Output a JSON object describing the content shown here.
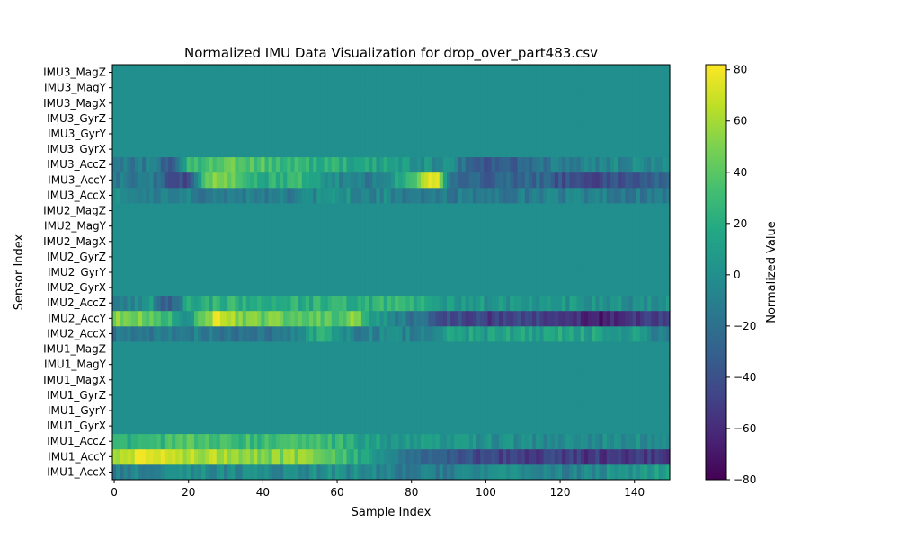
{
  "chart_data": {
    "type": "heatmap",
    "title": "Normalized IMU Data Visualization for drop_over_part483.csv",
    "xlabel": "Sample Index",
    "ylabel": "Sensor Index",
    "xlim": [
      0,
      150
    ],
    "x_ticks": [
      0,
      20,
      40,
      60,
      80,
      100,
      120,
      140
    ],
    "rows": [
      "IMU1_AccX",
      "IMU1_AccY",
      "IMU1_AccZ",
      "IMU1_GyrX",
      "IMU1_GyrY",
      "IMU1_GyrZ",
      "IMU1_MagX",
      "IMU1_MagY",
      "IMU1_MagZ",
      "IMU2_AccX",
      "IMU2_AccY",
      "IMU2_AccZ",
      "IMU2_GyrX",
      "IMU2_GyrY",
      "IMU2_GyrZ",
      "IMU2_MagX",
      "IMU2_MagY",
      "IMU2_MagZ",
      "IMU3_AccX",
      "IMU3_AccY",
      "IMU3_AccZ",
      "IMU3_GyrX",
      "IMU3_GyrY",
      "IMU3_GyrZ",
      "IMU3_MagX",
      "IMU3_MagY",
      "IMU3_MagZ"
    ],
    "n_samples": 150,
    "colorbar": {
      "label": "Normalized Value",
      "range": [
        -80,
        82
      ],
      "ticks": [
        -80,
        -60,
        -40,
        -20,
        0,
        20,
        40,
        60,
        80
      ],
      "colormap": "viridis"
    },
    "row_profiles": {
      "IMU1_AccX": [
        [
          0,
          -10
        ],
        [
          20,
          0
        ],
        [
          40,
          -5
        ],
        [
          60,
          0
        ],
        [
          80,
          -15
        ],
        [
          100,
          -5
        ],
        [
          120,
          -10
        ],
        [
          140,
          5
        ],
        [
          149,
          15
        ]
      ],
      "IMU1_AccY": [
        [
          0,
          65
        ],
        [
          10,
          75
        ],
        [
          20,
          65
        ],
        [
          30,
          65
        ],
        [
          40,
          50
        ],
        [
          55,
          55
        ],
        [
          60,
          40
        ],
        [
          70,
          5
        ],
        [
          80,
          -20
        ],
        [
          90,
          -30
        ],
        [
          100,
          -45
        ],
        [
          110,
          -50
        ],
        [
          120,
          -50
        ],
        [
          130,
          -55
        ],
        [
          140,
          -55
        ],
        [
          149,
          -50
        ]
      ],
      "IMU1_AccZ": [
        [
          0,
          20
        ],
        [
          20,
          35
        ],
        [
          35,
          30
        ],
        [
          50,
          30
        ],
        [
          60,
          25
        ],
        [
          70,
          10
        ],
        [
          80,
          5
        ],
        [
          100,
          0
        ],
        [
          120,
          -5
        ],
        [
          140,
          0
        ],
        [
          149,
          0
        ]
      ],
      "IMU2_AccX": [
        [
          0,
          -20
        ],
        [
          15,
          -10
        ],
        [
          30,
          -15
        ],
        [
          45,
          -20
        ],
        [
          55,
          20
        ],
        [
          65,
          -10
        ],
        [
          75,
          -5
        ],
        [
          85,
          -10
        ],
        [
          90,
          15
        ],
        [
          100,
          10
        ],
        [
          120,
          15
        ],
        [
          140,
          10
        ],
        [
          149,
          -15
        ]
      ],
      "IMU2_AccY": [
        [
          0,
          55
        ],
        [
          10,
          45
        ],
        [
          15,
          25
        ],
        [
          20,
          5
        ],
        [
          28,
          75
        ],
        [
          35,
          45
        ],
        [
          50,
          45
        ],
        [
          60,
          40
        ],
        [
          65,
          55
        ],
        [
          70,
          5
        ],
        [
          80,
          -15
        ],
        [
          90,
          -40
        ],
        [
          100,
          -50
        ],
        [
          110,
          -45
        ],
        [
          120,
          -50
        ],
        [
          130,
          -65
        ],
        [
          140,
          -55
        ],
        [
          149,
          -45
        ]
      ],
      "IMU2_AccZ": [
        [
          0,
          -20
        ],
        [
          10,
          5
        ],
        [
          15,
          -40
        ],
        [
          20,
          20
        ],
        [
          40,
          25
        ],
        [
          60,
          20
        ],
        [
          80,
          25
        ],
        [
          90,
          10
        ],
        [
          100,
          5
        ],
        [
          120,
          5
        ],
        [
          140,
          0
        ],
        [
          149,
          0
        ]
      ],
      "IMU3_AccX": [
        [
          0,
          -5
        ],
        [
          20,
          -10
        ],
        [
          40,
          -15
        ],
        [
          60,
          0
        ],
        [
          80,
          -10
        ],
        [
          100,
          -15
        ],
        [
          120,
          -10
        ],
        [
          140,
          -15
        ],
        [
          149,
          -10
        ]
      ],
      "IMU3_AccY": [
        [
          0,
          -15
        ],
        [
          10,
          -15
        ],
        [
          15,
          -40
        ],
        [
          20,
          -45
        ],
        [
          25,
          50
        ],
        [
          30,
          55
        ],
        [
          40,
          20
        ],
        [
          50,
          25
        ],
        [
          60,
          -5
        ],
        [
          70,
          -15
        ],
        [
          80,
          35
        ],
        [
          87,
          80
        ],
        [
          90,
          -20
        ],
        [
          100,
          -30
        ],
        [
          115,
          -25
        ],
        [
          120,
          -40
        ],
        [
          130,
          -45
        ],
        [
          140,
          -35
        ],
        [
          149,
          -30
        ]
      ],
      "IMU3_AccZ": [
        [
          0,
          -20
        ],
        [
          10,
          -10
        ],
        [
          15,
          -40
        ],
        [
          20,
          25
        ],
        [
          30,
          45
        ],
        [
          40,
          35
        ],
        [
          50,
          25
        ],
        [
          60,
          20
        ],
        [
          75,
          10
        ],
        [
          90,
          -5
        ],
        [
          100,
          -35
        ],
        [
          110,
          -30
        ],
        [
          120,
          -10
        ],
        [
          140,
          -5
        ],
        [
          149,
          0
        ]
      ]
    }
  }
}
